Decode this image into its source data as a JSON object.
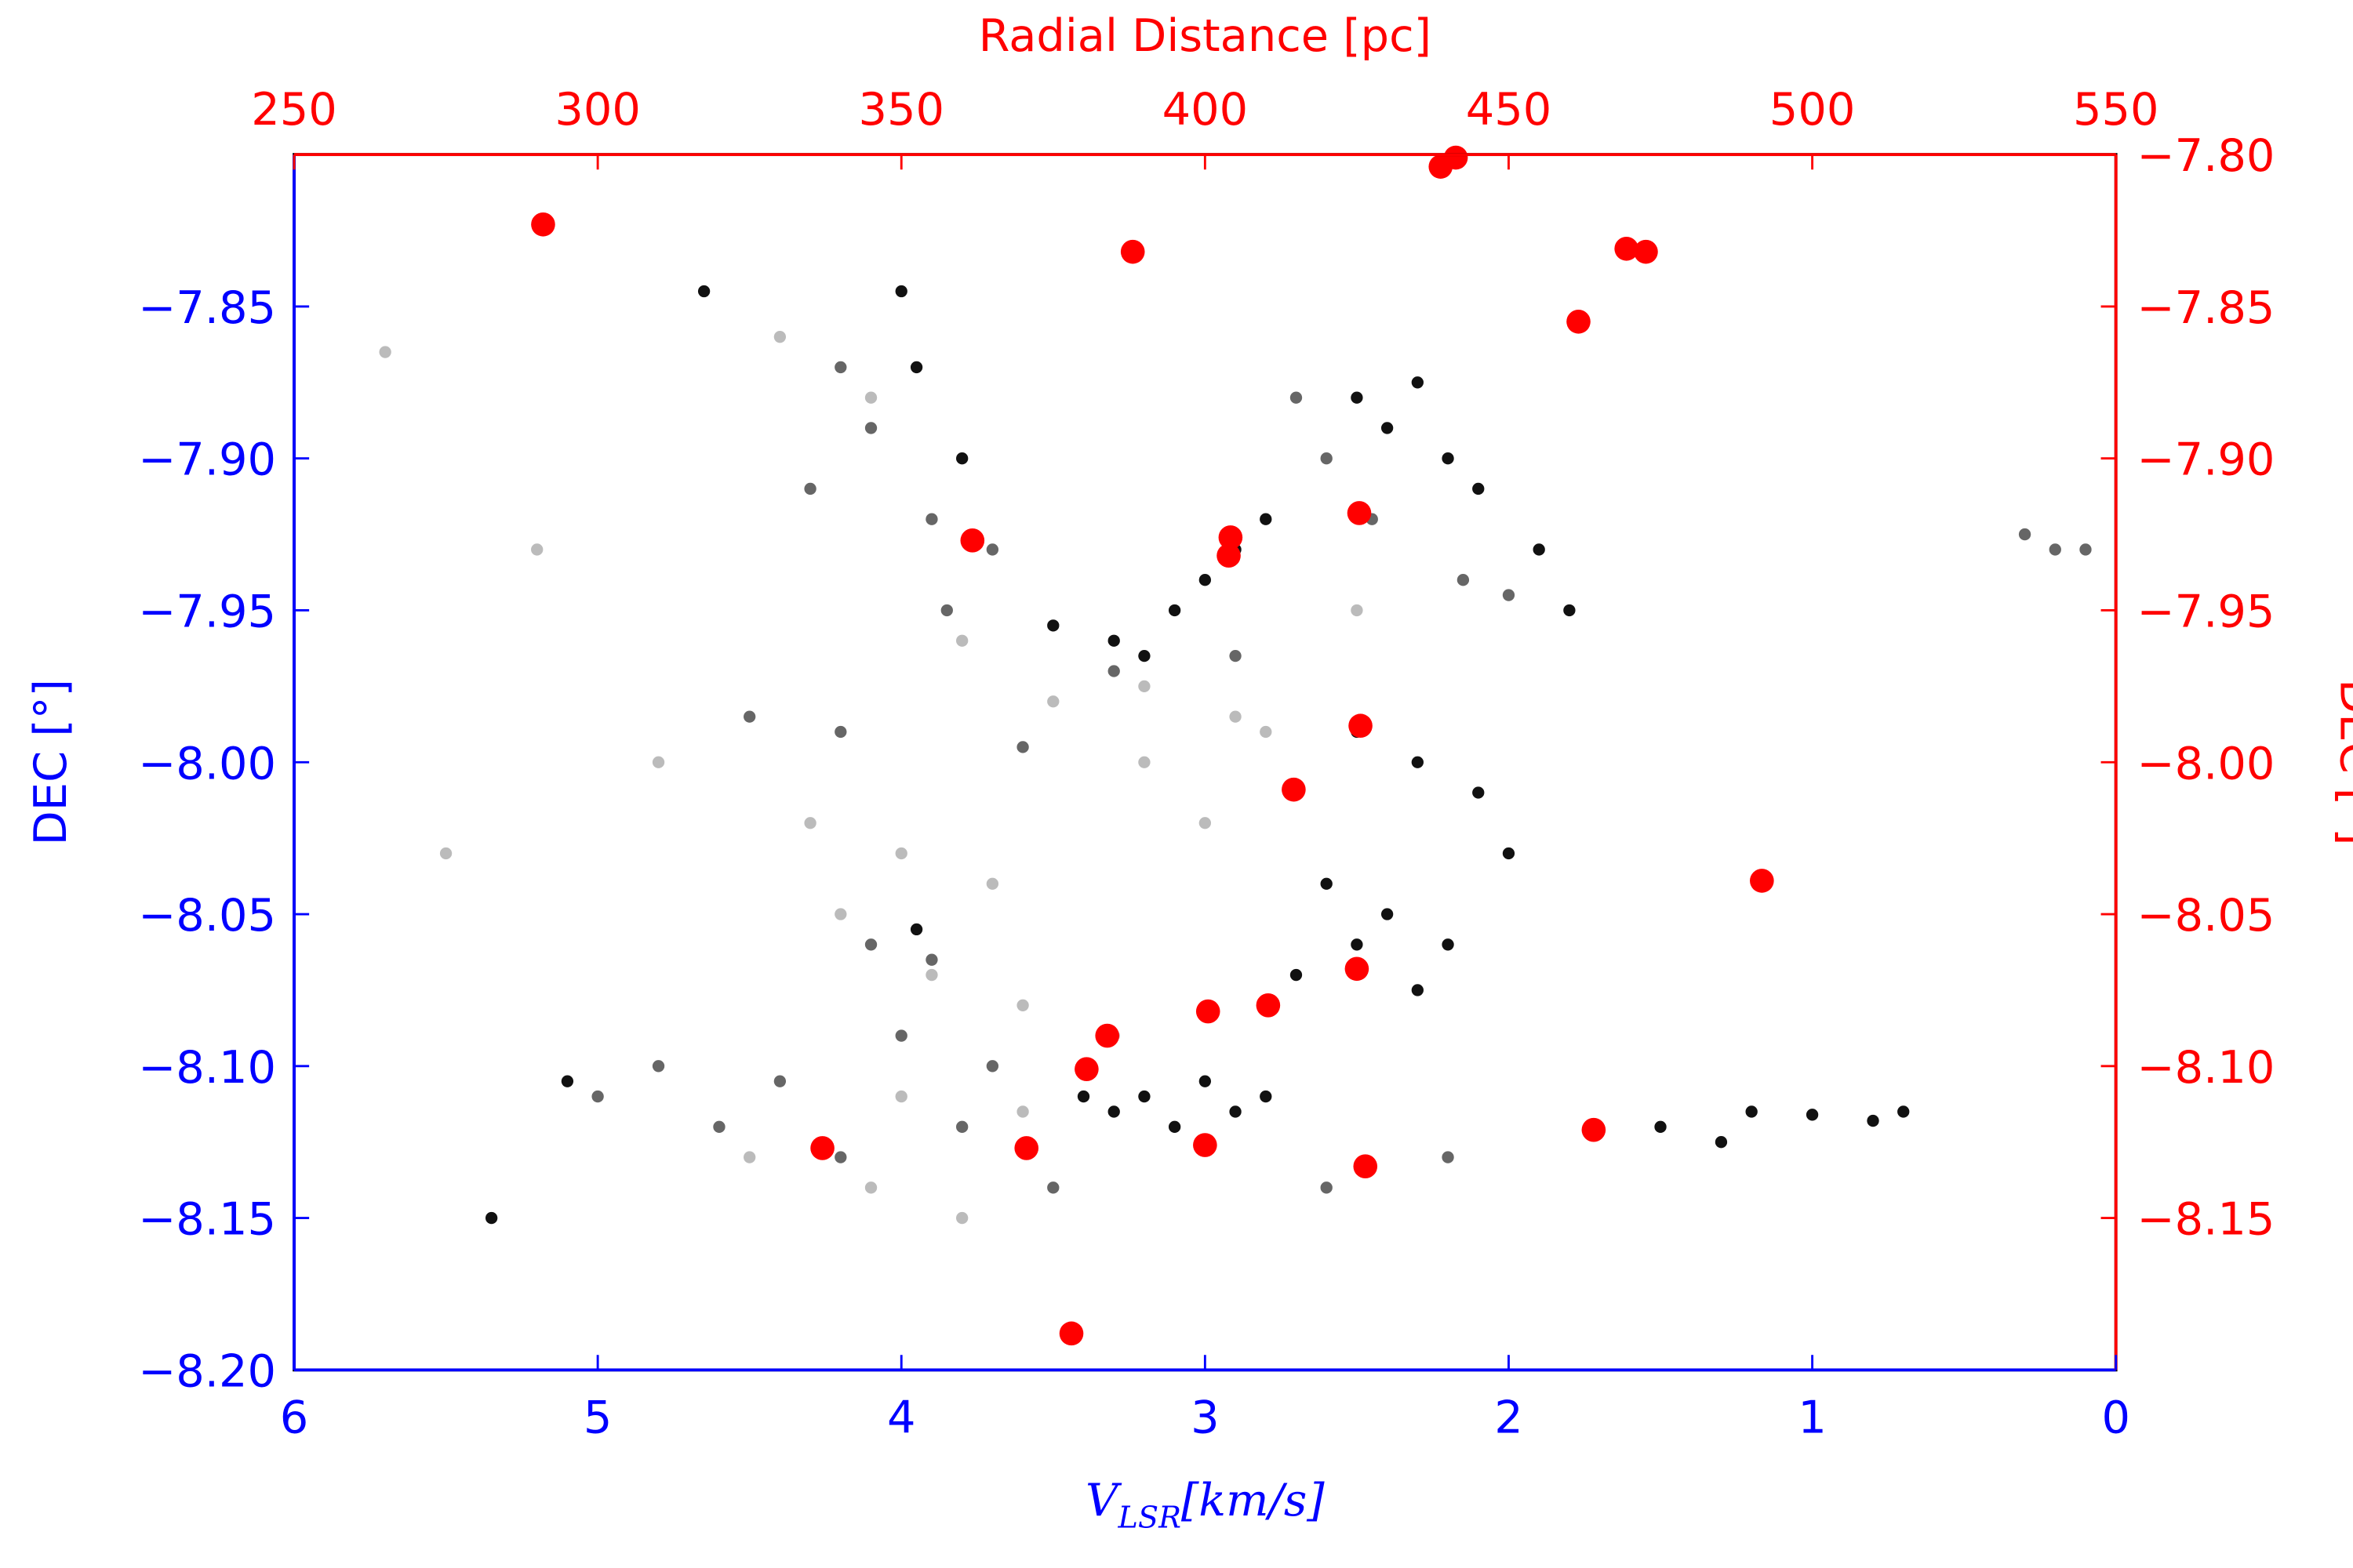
{
  "chart_data": {
    "type": "scatter",
    "x_label": {
      "main": "V",
      "sub": "LSR",
      "rest": "[km/s]"
    },
    "x2_label": "Radial Distance [pc]",
    "y_label": "DEC [°]",
    "y2_label": "DEC [°]",
    "axis_color": "blue",
    "axis2_color": "red",
    "xlim": [
      6,
      0
    ],
    "xticks": [
      6,
      5,
      4,
      3,
      2,
      1,
      0
    ],
    "x2lim": [
      250,
      550
    ],
    "x2ticks": [
      250,
      300,
      350,
      400,
      450,
      500,
      550
    ],
    "ylim": [
      -8.2,
      -7.8
    ],
    "yticks": [
      {
        "value": -7.85,
        "label": "−7.85"
      },
      {
        "value": -7.9,
        "label": "−7.90"
      },
      {
        "value": -7.95,
        "label": "−7.95"
      },
      {
        "value": -8.0,
        "label": "−8.00"
      },
      {
        "value": -8.05,
        "label": "−8.05"
      },
      {
        "value": -8.1,
        "label": "−8.10"
      },
      {
        "value": -8.15,
        "label": "−8.15"
      },
      {
        "value": -8.2,
        "label": "−8.20"
      }
    ],
    "y2lim": [
      -8.2,
      -7.8
    ],
    "y2ticks": [
      {
        "value": -7.8,
        "label": "−7.80"
      },
      {
        "value": -7.85,
        "label": "−7.85"
      },
      {
        "value": -7.9,
        "label": "−7.90"
      },
      {
        "value": -7.95,
        "label": "−7.95"
      },
      {
        "value": -8.0,
        "label": "−8.00"
      },
      {
        "value": -8.05,
        "label": "−8.05"
      },
      {
        "value": -8.1,
        "label": "−8.10"
      },
      {
        "value": -8.15,
        "label": "−8.15"
      }
    ],
    "series": [
      {
        "color": "#111111",
        "x": [
          4.65,
          4.0,
          3.95,
          3.8,
          3.5,
          3.3,
          3.2,
          3.1,
          3.0,
          2.9,
          2.8,
          2.5,
          2.4,
          2.3,
          2.2,
          2.1,
          1.9,
          1.8,
          2.5,
          2.3,
          2.1,
          2.0,
          2.6,
          2.4,
          2.2,
          2.7,
          2.5,
          2.3,
          3.4,
          3.3,
          3.2,
          3.1,
          3.0,
          2.9,
          2.8,
          5.35,
          5.1,
          1.5,
          1.3,
          1.2,
          3.95,
          0.8,
          0.7,
          1.0
        ],
        "values": [
          -7.845,
          -7.845,
          -7.87,
          -7.9,
          -7.955,
          -7.96,
          -7.965,
          -7.95,
          -7.94,
          -7.93,
          -7.92,
          -7.88,
          -7.89,
          -7.875,
          -7.9,
          -7.91,
          -7.93,
          -7.95,
          -7.99,
          -8.0,
          -8.01,
          -8.03,
          -8.04,
          -8.05,
          -8.06,
          -8.07,
          -8.06,
          -8.075,
          -8.11,
          -8.115,
          -8.11,
          -8.12,
          -8.105,
          -8.115,
          -8.11,
          -8.15,
          -8.105,
          -8.12,
          -8.125,
          -8.115,
          -8.055,
          -8.118,
          -8.115,
          -8.116
        ]
      },
      {
        "color": "#666666",
        "x": [
          4.2,
          4.1,
          3.9,
          3.7,
          4.3,
          3.85,
          2.7,
          2.6,
          2.45,
          2.15,
          2.0,
          4.5,
          4.2,
          3.6,
          3.3,
          2.9,
          4.8,
          4.4,
          4.0,
          3.7,
          4.1,
          3.9,
          5.0,
          4.6,
          4.2,
          3.8,
          3.5,
          2.6,
          2.2,
          0.3,
          0.2,
          0.1
        ],
        "values": [
          -7.87,
          -7.89,
          -7.92,
          -7.93,
          -7.91,
          -7.95,
          -7.88,
          -7.9,
          -7.92,
          -7.94,
          -7.945,
          -7.985,
          -7.99,
          -7.995,
          -7.97,
          -7.965,
          -8.1,
          -8.105,
          -8.09,
          -8.1,
          -8.06,
          -8.065,
          -8.11,
          -8.12,
          -8.13,
          -8.12,
          -8.14,
          -8.14,
          -8.13,
          -7.925,
          -7.93,
          -7.93
        ]
      },
      {
        "color": "#bbbbbb",
        "x": [
          4.4,
          4.1,
          3.8,
          3.5,
          3.2,
          2.9,
          4.3,
          4.0,
          3.7,
          4.2,
          3.9,
          3.6,
          3.3,
          4.5,
          4.1,
          3.8,
          5.7,
          5.5,
          5.2,
          4.8,
          3.2,
          3.0,
          2.8,
          2.5,
          4.0,
          3.6
        ],
        "values": [
          -7.86,
          -7.88,
          -7.96,
          -7.98,
          -7.975,
          -7.985,
          -8.02,
          -8.03,
          -8.04,
          -8.05,
          -8.07,
          -8.08,
          -8.09,
          -8.13,
          -8.14,
          -8.15,
          -7.865,
          -8.03,
          -7.93,
          -8.0,
          -8.0,
          -8.02,
          -7.99,
          -7.95,
          -8.11,
          -8.115
        ]
      },
      {
        "color": "#ff0000",
        "axis": "y2",
        "x": [
          291.0,
          388.1,
          438.8,
          441.3,
          469.4,
          472.6,
          461.5,
          361.7,
          404.2,
          403.9,
          425.4,
          425.6,
          414.6,
          491.7,
          425.0,
          400.5,
          410.4,
          383.9,
          380.5,
          464.0,
          337.0,
          370.6,
          400.0,
          426.4,
          378.0
        ],
        "values": [
          -7.823,
          -7.832,
          -7.804,
          -7.801,
          -7.831,
          -7.832,
          -7.855,
          -7.927,
          -7.926,
          -7.932,
          -7.918,
          -7.988,
          -8.009,
          -8.039,
          -8.068,
          -8.082,
          -8.08,
          -8.09,
          -8.101,
          -8.121,
          -8.127,
          -8.127,
          -8.126,
          -8.133,
          -8.188
        ]
      }
    ]
  }
}
